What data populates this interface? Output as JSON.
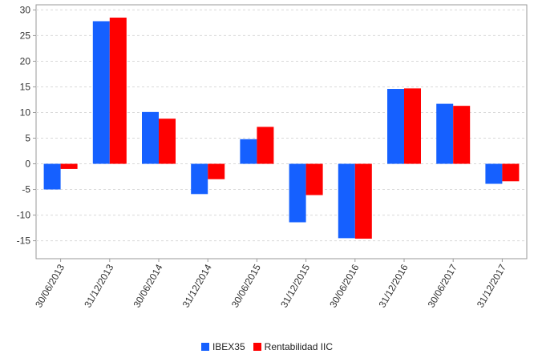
{
  "chart_data": {
    "type": "bar",
    "title": "",
    "xlabel": "",
    "ylabel": "",
    "categories": [
      "30/06/2013",
      "31/12/2013",
      "30/06/2014",
      "31/12/2014",
      "30/06/2015",
      "31/12/2015",
      "30/06/2016",
      "31/12/2016",
      "30/06/2017",
      "31/12/2017"
    ],
    "series": [
      {
        "name": "IBEX35",
        "color": "#1560ff",
        "values": [
          -5.0,
          27.8,
          10.1,
          -5.9,
          4.8,
          -11.4,
          -14.5,
          14.6,
          11.7,
          -3.9
        ]
      },
      {
        "name": "Rentabilidad IIC",
        "color": "#ff0000",
        "values": [
          -1.0,
          28.5,
          8.8,
          -3.0,
          7.2,
          -6.1,
          -14.6,
          14.7,
          11.3,
          -3.4
        ]
      }
    ],
    "ylim": [
      -18.5,
      31
    ],
    "yticks": [
      30,
      25,
      20,
      15,
      10,
      5,
      0,
      -5,
      -10,
      -15
    ],
    "grid": true,
    "legend_position": "bottom-center"
  }
}
